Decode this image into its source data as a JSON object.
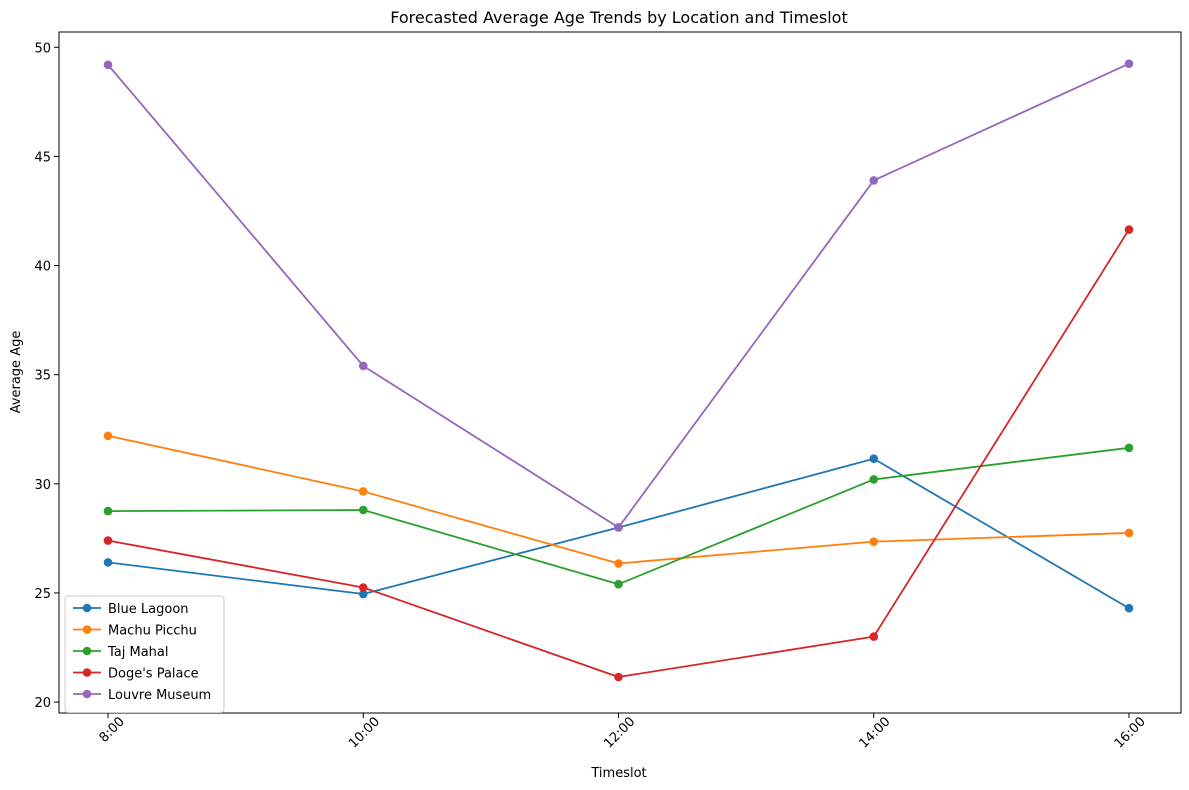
{
  "chart_data": {
    "type": "line",
    "title": "Forecasted Average Age Trends by Location and Timeslot",
    "xlabel": "Timeslot",
    "ylabel": "Average Age",
    "categories": [
      "8:00",
      "10:00",
      "12:00",
      "14:00",
      "16:00"
    ],
    "ylim": [
      19.5,
      50.7
    ],
    "yticks": [
      20,
      25,
      30,
      35,
      40,
      45,
      50
    ],
    "grid": false,
    "legend_position": "lower-left",
    "series": [
      {
        "name": "Blue Lagoon",
        "color": "#1f77b4",
        "values": [
          26.4,
          24.95,
          28.0,
          31.15,
          24.3
        ]
      },
      {
        "name": "Machu Picchu",
        "color": "#ff7f0e",
        "values": [
          32.2,
          29.65,
          26.35,
          27.35,
          27.75
        ]
      },
      {
        "name": "Taj Mahal",
        "color": "#2ca02c",
        "values": [
          28.75,
          28.8,
          25.4,
          30.2,
          31.65
        ]
      },
      {
        "name": "Doge's Palace",
        "color": "#d62728",
        "values": [
          27.4,
          25.25,
          21.15,
          23.0,
          41.65
        ]
      },
      {
        "name": "Louvre Museum",
        "color": "#9467bd",
        "values": [
          49.2,
          35.4,
          28.0,
          43.9,
          49.25
        ]
      }
    ]
  }
}
